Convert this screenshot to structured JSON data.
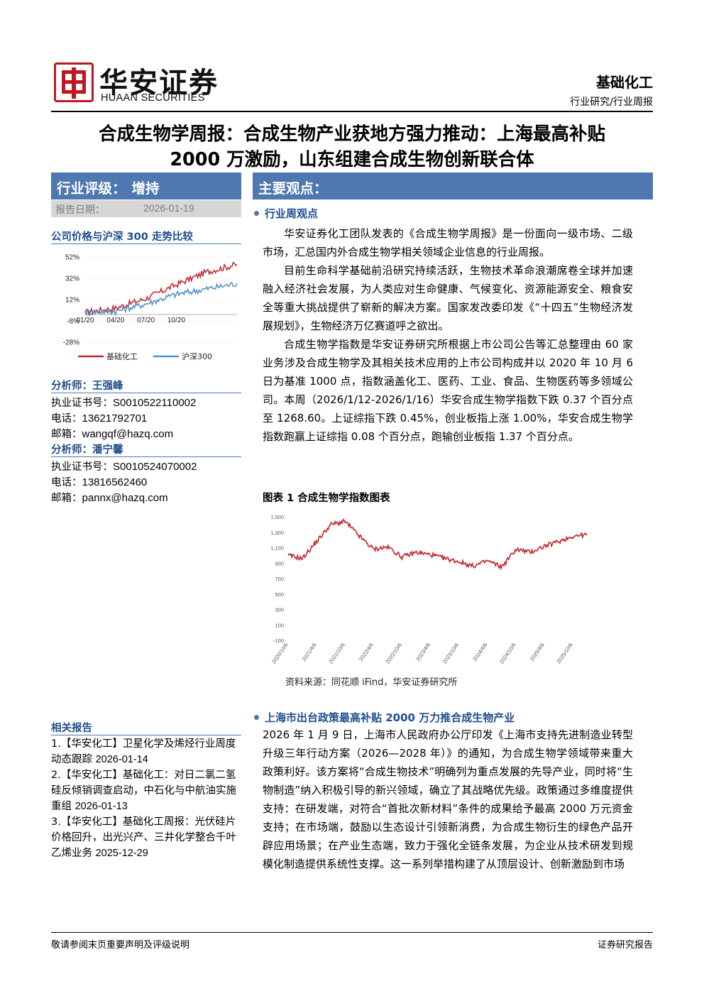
{
  "header": {
    "brand_cn": "华安证券",
    "brand_en": "HUAAN SECURITIES",
    "sector": "基础化工",
    "report_type": "行业研究/行业周报"
  },
  "title": {
    "line1": "合成生物学周报：合成生物产业获地方强力推动：上海最高补贴",
    "line2": "2000 万激励，山东组建合成生物创新联合体"
  },
  "rating": {
    "label": "行业评级：",
    "value": "增持"
  },
  "report_date": {
    "label": "报告日期：",
    "value": "2026-01-19"
  },
  "price_chart": {
    "title": "公司价格与沪深 300 走势比较",
    "legend": [
      "基础化工",
      "沪深300"
    ],
    "colors": [
      "#c0262d",
      "#4d8fc7"
    ]
  },
  "analysts": [
    {
      "title": "分析师：王强峰",
      "license_label": "执业证书号：",
      "license": "S0010522110002",
      "phone_label": "电话：",
      "phone": "13621792701",
      "email_label": "邮箱：",
      "email": "wangqf@hazq.com"
    },
    {
      "title": "分析师：潘宁馨",
      "license_label": "执业证书号：",
      "license": "S0010524070002",
      "phone_label": "电话：",
      "phone": "13816562460",
      "email_label": "邮箱：",
      "email": "pannx@hazq.com"
    }
  ],
  "related": {
    "title": "相关报告",
    "items": [
      {
        "text": "1.【华安化工】卫星化学及烯烃行业周度动态跟踪",
        "date": "2026-01-14"
      },
      {
        "text": "2.【华安化工】基础化工：对日二氯二氢硅反倾销调查启动，中石化与中航油实施重组",
        "date": "2026-01-13"
      },
      {
        "text": "3.【华安化工】基础化工周报：光伏硅片价格回升，出光兴产、三井化学整合千叶乙烯业务",
        "date": "2025-12-29"
      }
    ]
  },
  "main": {
    "bar_title": "主要观点：",
    "section1_title": "行业周观点",
    "p1": "华安证券化工团队发表的《合成生物学周报》是一份面向一级市场、二级市场，汇总国内外合成生物学相关领域企业信息的行业周报。",
    "p2": "目前生命科学基础前沿研究持续活跃，生物技术革命浪潮席卷全球并加速融入经济社会发展，为人类应对生命健康、气候变化、资源能源安全、粮食安全等重大挑战提供了崭新的解决方案。国家发改委印发《“十四五”生物经济发展规划》，生物经济万亿赛道呼之欲出。",
    "p3": "合成生物学指数是华安证券研究所根据上市公司公告等汇总整理由 60 家业务涉及合成生物学及其相关技术应用的上市公司构成并以 2020 年 10 月 6 日为基准 1000 点，指数涵盖化工、医药、工业、食品、生物医药等多领域公司。本周（2026/1/12-2026/1/16）华安合成生物学指数下跌 0.37 个百分点至 1268.60。上证综指下跌 0.45%，创业板指上涨 1.00%，华安合成生物学指数跑赢上证综指 0.08 个百分点，跑输创业板指 1.37 个百分点。",
    "figure_title": "图表 1 合成生物学指数图表",
    "figure_source": "资料来源：同花顺 iFind，华安证券研究所",
    "section2_title": "上海市出台政策最高补贴 2000 万力推合成生物产业",
    "p4": "2026 年 1 月 9 日，上海市人民政府办公厅印发《上海市支持先进制造业转型升级三年行动方案（2026—2028 年）》的通知，为合成生物学领域带来重大政策利好。该方案将“合成生物技术”明确列为重点发展的先导产业，同时将“生物制造”纳入积极引导的新兴领域，确立了其战略优先级。政策通过多维度提供支持：在研发端，对符合“首批次新材料”条件的成果给予最高 2000 万元资金支持；在市场端，鼓励以生态设计引领新消费，为合成生物衍生的绿色产品开辟应用场景；在产业生态端，致力于强化全链条发展，为企业从技术研发到规模化制造提供系统性支撑。这一系列举措构建了从顶层设计、创新激励到市场"
  },
  "chart_data": [
    {
      "type": "line",
      "title": "公司价格与沪深 300 走势比较",
      "x_ticks": [
        "01/20",
        "04/20",
        "07/20",
        "10/20"
      ],
      "y_ticks": [
        "52%",
        "32%",
        "12%",
        "-8%",
        "-28%"
      ],
      "ylim": [
        -28,
        52
      ],
      "legend_position": "bottom",
      "series": [
        {
          "name": "基础化工",
          "x": [
            "01/20",
            "04/20",
            "07/20",
            "10/20",
            "12/20",
            "01/19"
          ],
          "values": [
            0,
            4,
            13,
            26,
            38,
            45
          ]
        },
        {
          "name": "沪深300",
          "x": [
            "01/20",
            "04/20",
            "07/20",
            "10/20",
            "12/20",
            "01/19"
          ],
          "values": [
            0,
            1,
            8,
            17,
            22,
            27
          ]
        }
      ]
    },
    {
      "type": "line",
      "title": "图表 1 合成生物学指数图表",
      "y_ticks": [
        "1,500",
        "1,300",
        "1,100",
        "900",
        "700",
        "500",
        "300",
        "100",
        "-100"
      ],
      "ylim": [
        -100,
        1500
      ],
      "x_ticks": [
        "2020/10/6",
        "2021/4/6",
        "2021/10/6",
        "2022/4/6",
        "2022/10/6",
        "2023/4/6",
        "2023/10/6",
        "2024/4/6",
        "2024/10/6",
        "2025/4/6",
        "2025/10/6"
      ],
      "series": [
        {
          "name": "",
          "x": [
            "2020/10/6",
            "2021/1/6",
            "2021/4/6",
            "2021/7/6",
            "2021/10/6",
            "2022/1/6",
            "2022/4/6",
            "2022/7/6",
            "2022/10/6",
            "2023/1/6",
            "2023/4/6",
            "2023/7/6",
            "2023/10/6",
            "2024/1/6",
            "2024/4/6",
            "2024/7/6",
            "2024/10/6",
            "2025/1/6",
            "2025/4/6",
            "2025/7/6",
            "2025/10/6",
            "2026/1/16"
          ],
          "values": [
            1000,
            960,
            1180,
            1400,
            1440,
            1250,
            1080,
            1110,
            980,
            1040,
            1010,
            960,
            920,
            860,
            930,
            850,
            1080,
            1040,
            1120,
            1180,
            1250,
            1268.6
          ]
        }
      ],
      "color": "#c0262d"
    }
  ],
  "footer": {
    "left": "敬请参阅末页重要声明及评级说明",
    "right": "证券研究报告"
  }
}
